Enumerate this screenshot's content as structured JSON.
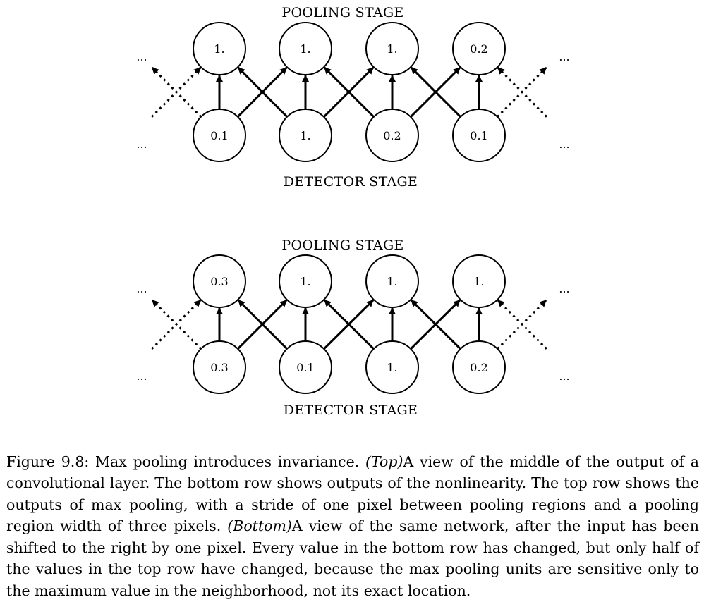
{
  "diagrams": [
    {
      "id": "top",
      "pooling_label": "POOLING STAGE",
      "detector_label": "DETECTOR STAGE",
      "pooling_values": [
        "1.",
        "1.",
        "1.",
        "0.2"
      ],
      "detector_values": [
        "0.1",
        "1.",
        "0.2",
        "0.1"
      ]
    },
    {
      "id": "bottom",
      "pooling_label": "POOLING STAGE",
      "detector_label": "DETECTOR STAGE",
      "pooling_values": [
        "0.3",
        "1.",
        "1.",
        "1."
      ],
      "detector_values": [
        "0.3",
        "0.1",
        "1.",
        "0.2"
      ]
    }
  ],
  "ellipsis": "...",
  "caption": {
    "figure_label": "Figure 9.8:",
    "intro": " Max pooling introduces invariance. ",
    "top_tag": "(Top)",
    "top_text": "A view of the middle of the output of a convolutional layer. The bottom row shows outputs of the nonlinearity. The top row shows the outputs of max pooling, with a stride of one pixel between pooling regions and a pooling region width of three pixels. ",
    "bottom_tag": "(Bottom)",
    "bottom_text": "A view of the same network, after the input has been shifted to the right by one pixel. Every value in the bottom row has changed, but only half of the values in the top row have changed, because the max pooling units are sensitive only to the maximum value in the neighborhood, not its exact location."
  }
}
